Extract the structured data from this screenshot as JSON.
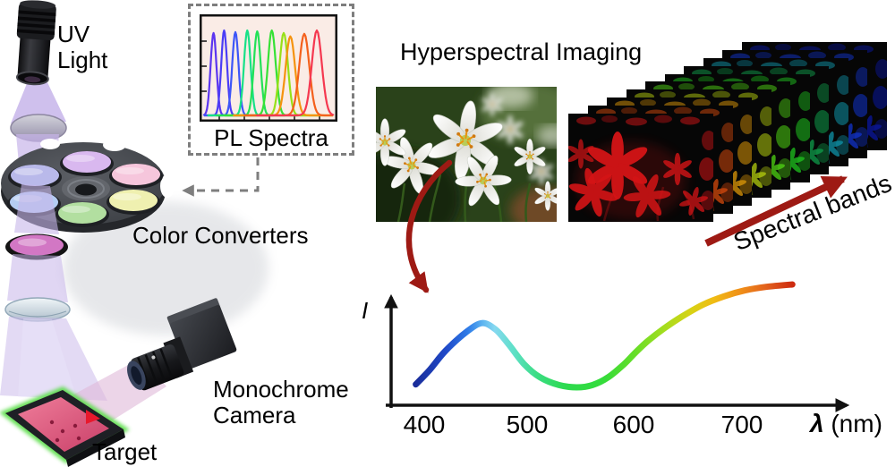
{
  "scene": {
    "uv_light": [
      "UV",
      "Light"
    ],
    "color_converters": "Color Converters",
    "target": "Target",
    "monochrome_camera": [
      "Monochrome",
      "Camera"
    ],
    "beam_color": "#c7b5ea",
    "camera_beam_color": "#dfb9d9",
    "converter_filter_color": "#d277c4",
    "filter_colors": [
      "#d9b8ef",
      "#f6c6dc",
      "#eff0b0",
      "#b2dfa0",
      "#b4ccf2",
      "#b9b9ea"
    ],
    "target_face_color": "#e0557e",
    "target_glow_color": "#54dd42",
    "target_marker_color": "#e8182c"
  },
  "pl_inset": {
    "label": "PL Spectra",
    "background": "#faece6"
  },
  "hyperspectral": {
    "title": "Hyperspectral Imaging",
    "bands_label": "Spectral bands",
    "arrow_color": "#9e1a14",
    "band_colors_front_to_back": [
      "#d41416",
      "#d4490c",
      "#dd9708",
      "#b3cc0e",
      "#4fd413",
      "#1fc41f",
      "#0f9c4a",
      "#0f93a8",
      "#1133cc",
      "#0a17a0"
    ]
  },
  "spectrum_plot": {
    "y_label": "I",
    "x_symbol": "λ",
    "x_unit": " (nm)",
    "ticks": [
      "400",
      "500",
      "600",
      "700"
    ]
  },
  "chart_data": [
    {
      "type": "line",
      "title": "PL Spectra",
      "xlabel": "",
      "ylabel": "",
      "x_range_normalized": [
        0,
        1
      ],
      "ylim": [
        0,
        1
      ],
      "peaks": [
        {
          "center": 0.085,
          "sigma": 0.022,
          "amp": 0.97,
          "color": "#5b35f0"
        },
        {
          "center": 0.165,
          "sigma": 0.022,
          "amp": 1.0,
          "color": "#4b3df6"
        },
        {
          "center": 0.25,
          "sigma": 0.024,
          "amp": 0.98,
          "color": "#3d56f8"
        },
        {
          "center": 0.34,
          "sigma": 0.025,
          "amp": 1.0,
          "color": "#17e187"
        },
        {
          "center": 0.415,
          "sigma": 0.026,
          "amp": 0.99,
          "color": "#23e158"
        },
        {
          "center": 0.525,
          "sigma": 0.03,
          "amp": 1.0,
          "color": "#36e136"
        },
        {
          "center": 0.615,
          "sigma": 0.032,
          "amp": 0.97,
          "color": "#97e018"
        },
        {
          "center": 0.665,
          "sigma": 0.036,
          "amp": 0.93,
          "color": "#f5930f"
        },
        {
          "center": 0.77,
          "sigma": 0.038,
          "amp": 0.96,
          "color": "#f4601c"
        },
        {
          "center": 0.865,
          "sigma": 0.038,
          "amp": 1.0,
          "color": "#f53850"
        }
      ]
    },
    {
      "type": "line",
      "title": "",
      "xlabel": "λ (nm)",
      "ylabel": "I",
      "xlim": [
        390,
        760
      ],
      "ylim": [
        0,
        1
      ],
      "x_ticks": [
        400,
        500,
        600,
        700
      ],
      "points": [
        [
          392,
          0.16
        ],
        [
          405,
          0.28
        ],
        [
          420,
          0.44
        ],
        [
          440,
          0.6
        ],
        [
          455,
          0.675
        ],
        [
          468,
          0.62
        ],
        [
          480,
          0.5
        ],
        [
          495,
          0.33
        ],
        [
          510,
          0.22
        ],
        [
          528,
          0.155
        ],
        [
          545,
          0.135
        ],
        [
          560,
          0.155
        ],
        [
          575,
          0.22
        ],
        [
          590,
          0.33
        ],
        [
          600,
          0.42
        ],
        [
          612,
          0.52
        ],
        [
          628,
          0.63
        ],
        [
          645,
          0.73
        ],
        [
          665,
          0.83
        ],
        [
          685,
          0.9
        ],
        [
          705,
          0.95
        ],
        [
          725,
          0.98
        ],
        [
          750,
          1.0
        ]
      ]
    }
  ]
}
